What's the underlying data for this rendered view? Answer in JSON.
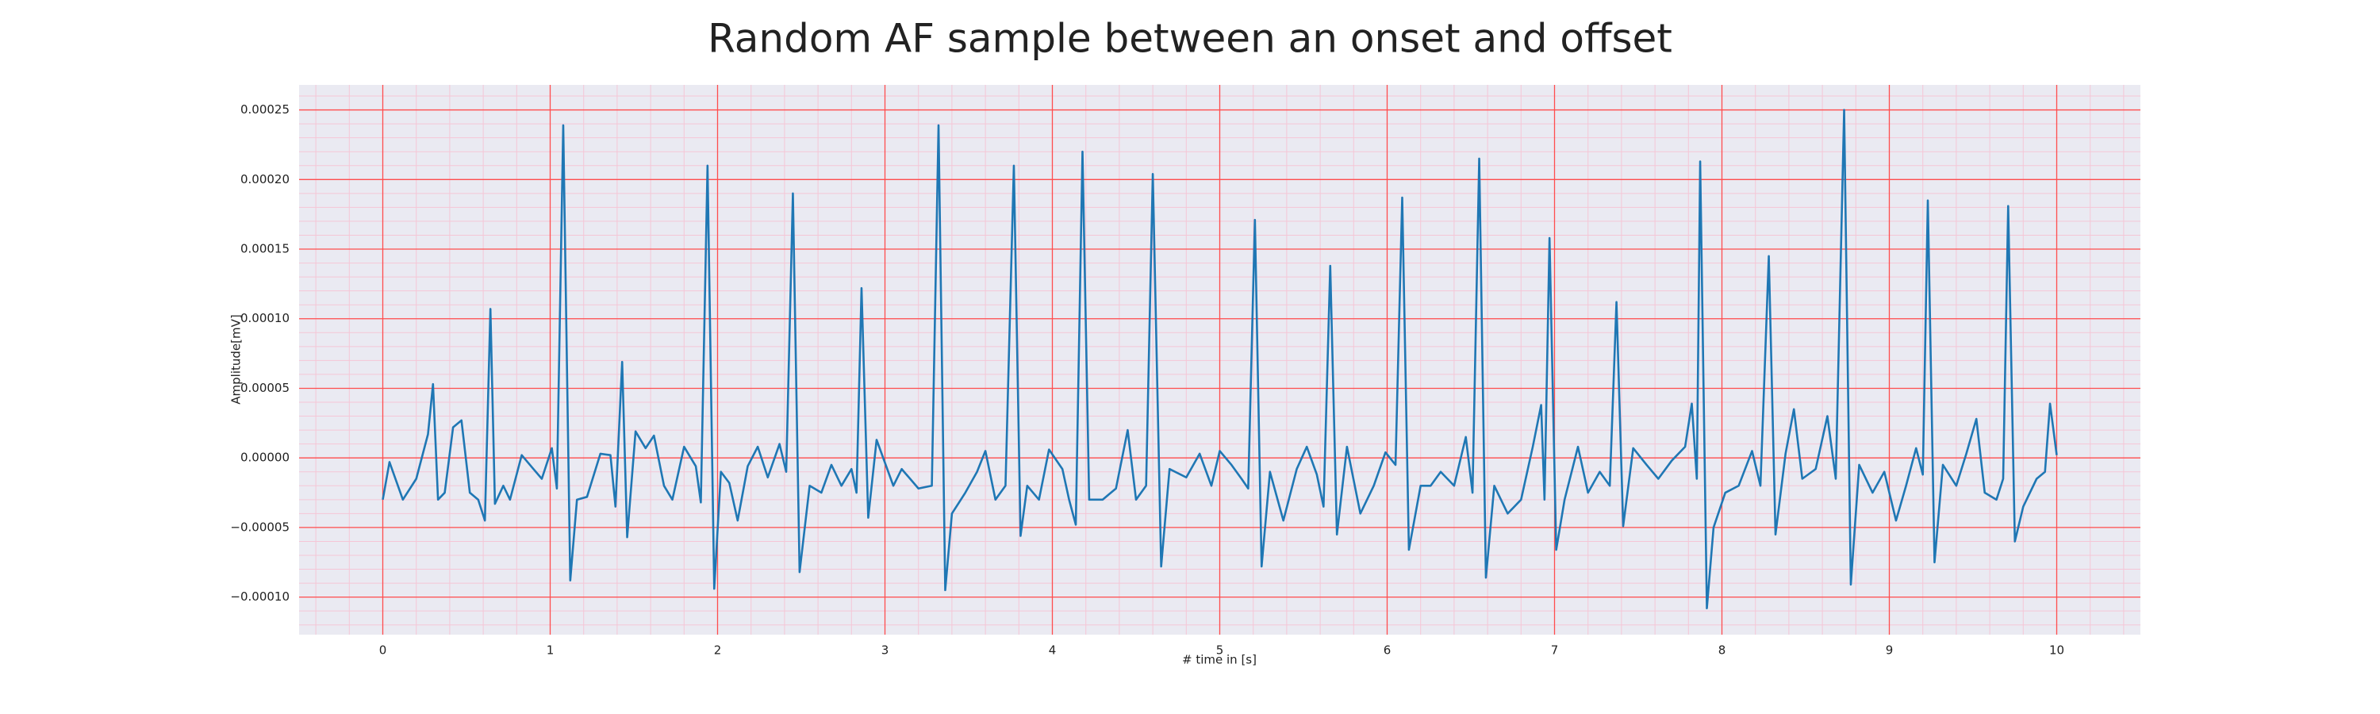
{
  "chart_data": {
    "type": "line",
    "title": "Random AF sample between an onset and offset",
    "xlabel": "# time in [s]",
    "ylabel": "Amplitude[mV]",
    "xlim": [
      -0.5,
      10.5
    ],
    "ylim": [
      -0.000127,
      0.000268
    ],
    "xticks": [
      0,
      1,
      2,
      3,
      4,
      5,
      6,
      7,
      8,
      9,
      10
    ],
    "yticks": [
      {
        "value": -0.0001,
        "label": "−0.00010"
      },
      {
        "value": -5e-05,
        "label": "−0.00005"
      },
      {
        "value": 0,
        "label": "0.00000"
      },
      {
        "value": 5e-05,
        "label": "0.00005"
      },
      {
        "value": 0.0001,
        "label": "0.00010"
      },
      {
        "value": 0.00015,
        "label": "0.00015"
      },
      {
        "value": 0.0002,
        "label": "0.00020"
      },
      {
        "value": 0.00025,
        "label": "0.00025"
      }
    ],
    "grid": true,
    "grid_color": "#ff4d4d",
    "minor_grid": {
      "x_step": 0.2,
      "y_step": 1e-05,
      "color": "#f5c6d6"
    },
    "background": "#eaeaf2",
    "x": [
      0,
      0.04,
      0.12,
      0.2,
      0.27,
      0.3,
      0.33,
      0.37,
      0.42,
      0.47,
      0.52,
      0.57,
      0.61,
      0.643,
      0.67,
      0.72,
      0.76,
      0.83,
      0.9,
      0.95,
      1.01,
      1.04,
      1.078,
      1.12,
      1.16,
      1.22,
      1.3,
      1.36,
      1.39,
      1.43,
      1.46,
      1.51,
      1.57,
      1.62,
      1.68,
      1.73,
      1.8,
      1.87,
      1.9,
      1.94,
      1.98,
      2.02,
      2.07,
      2.12,
      2.18,
      2.24,
      2.3,
      2.37,
      2.41,
      2.45,
      2.49,
      2.55,
      2.62,
      2.68,
      2.74,
      2.8,
      2.83,
      2.86,
      2.9,
      2.95,
      3.05,
      3.1,
      3.2,
      3.28,
      3.32,
      3.36,
      3.4,
      3.48,
      3.55,
      3.6,
      3.66,
      3.72,
      3.77,
      3.81,
      3.85,
      3.92,
      3.98,
      4.06,
      4.1,
      4.14,
      4.18,
      4.22,
      4.3,
      4.38,
      4.45,
      4.5,
      4.56,
      4.6,
      4.65,
      4.7,
      4.8,
      4.88,
      4.95,
      5.0,
      5.07,
      5.13,
      5.17,
      5.21,
      5.25,
      5.3,
      5.38,
      5.46,
      5.52,
      5.58,
      5.62,
      5.66,
      5.7,
      5.76,
      5.84,
      5.92,
      5.99,
      6.05,
      6.09,
      6.13,
      6.2,
      6.26,
      6.32,
      6.4,
      6.47,
      6.51,
      6.55,
      6.59,
      6.64,
      6.72,
      6.8,
      6.87,
      6.92,
      6.94,
      6.97,
      7.01,
      7.06,
      7.14,
      7.2,
      7.27,
      7.33,
      7.37,
      7.41,
      7.47,
      7.55,
      7.62,
      7.7,
      7.78,
      7.82,
      7.85,
      7.87,
      7.91,
      7.95,
      8.02,
      8.1,
      8.18,
      8.23,
      8.28,
      8.32,
      8.38,
      8.43,
      8.48,
      8.56,
      8.63,
      8.68,
      8.73,
      8.77,
      8.82,
      8.9,
      8.97,
      9.04,
      9.1,
      9.16,
      9.2,
      9.23,
      9.27,
      9.32,
      9.4,
      9.46,
      9.52,
      9.57,
      9.64,
      9.68,
      9.71,
      9.75,
      9.8,
      9.88,
      9.93,
      9.96,
      10.0
    ],
    "series": [
      {
        "color": "#1f77b4",
        "values": [
          -3e-05,
          -3e-06,
          -3e-05,
          -1.5e-05,
          1.7e-05,
          5.3e-05,
          -3e-05,
          -2.5e-05,
          2.2e-05,
          2.7e-05,
          -2.5e-05,
          -3e-05,
          -4.5e-05,
          0.000107,
          -3.3e-05,
          -2e-05,
          -3e-05,
          2e-06,
          -8e-06,
          -1.5e-05,
          7e-06,
          -2.2e-05,
          0.000239,
          -8.8e-05,
          -3e-05,
          -2.8e-05,
          3e-06,
          2e-06,
          -3.5e-05,
          6.9e-05,
          -5.7e-05,
          1.9e-05,
          7e-06,
          1.6e-05,
          -2e-05,
          -3e-05,
          8e-06,
          -6e-06,
          -3.2e-05,
          0.00021,
          -9.4e-05,
          -1e-05,
          -1.8e-05,
          -4.5e-05,
          -6e-06,
          8e-06,
          -1.4e-05,
          1e-05,
          -1e-05,
          0.00019,
          -8.2e-05,
          -2e-05,
          -2.5e-05,
          -5e-06,
          -2e-05,
          -8e-06,
          -2.5e-05,
          0.000122,
          -4.3e-05,
          1.3e-05,
          -2e-05,
          -8e-06,
          -2.2e-05,
          -2e-05,
          0.000239,
          -9.5e-05,
          -4e-05,
          -2.5e-05,
          -1e-05,
          5e-06,
          -3e-05,
          -2e-05,
          0.00021,
          -5.6e-05,
          -2e-05,
          -3e-05,
          6e-06,
          -8e-06,
          -3e-05,
          -4.8e-05,
          0.00022,
          -3e-05,
          -3e-05,
          -2.2e-05,
          2e-05,
          -3e-05,
          -2e-05,
          0.000204,
          -7.8e-05,
          -8e-06,
          -1.4e-05,
          3e-06,
          -2e-05,
          5e-06,
          -5e-06,
          -1.5e-05,
          -2.2e-05,
          0.000171,
          -7.8e-05,
          -1e-05,
          -4.5e-05,
          -8e-06,
          8e-06,
          -1.2e-05,
          -3.5e-05,
          0.000138,
          -5.5e-05,
          8e-06,
          -4e-05,
          -2e-05,
          4e-06,
          -5e-06,
          0.000187,
          -6.6e-05,
          -2e-05,
          -2e-05,
          -1e-05,
          -2e-05,
          1.5e-05,
          -2.5e-05,
          0.000215,
          -8.6e-05,
          -2e-05,
          -4e-05,
          -3e-05,
          8e-06,
          3.8e-05,
          -3e-05,
          0.000158,
          -6.6e-05,
          -3e-05,
          8e-06,
          -2.5e-05,
          -1e-05,
          -2e-05,
          0.000112,
          -4.9e-05,
          7e-06,
          -5e-06,
          -1.5e-05,
          -2e-06,
          8e-06,
          3.9e-05,
          -1.5e-05,
          0.000213,
          -0.000108,
          -5e-05,
          -2.5e-05,
          -2e-05,
          5e-06,
          -2e-05,
          0.000145,
          -5.5e-05,
          3e-06,
          3.5e-05,
          -1.5e-05,
          -8e-06,
          3e-05,
          -1.5e-05,
          0.00025,
          -9.1e-05,
          -5e-06,
          -2.5e-05,
          -1e-05,
          -4.5e-05,
          -2e-05,
          7e-06,
          -1.2e-05,
          0.000185,
          -7.5e-05,
          -5e-06,
          -2e-05,
          3e-06,
          2.8e-05,
          -2.5e-05,
          -3e-05,
          -1.5e-05,
          0.000181,
          -6e-05,
          -3.5e-05,
          -1.5e-05,
          -1e-05,
          3.9e-05,
          2e-06
        ]
      }
    ]
  }
}
